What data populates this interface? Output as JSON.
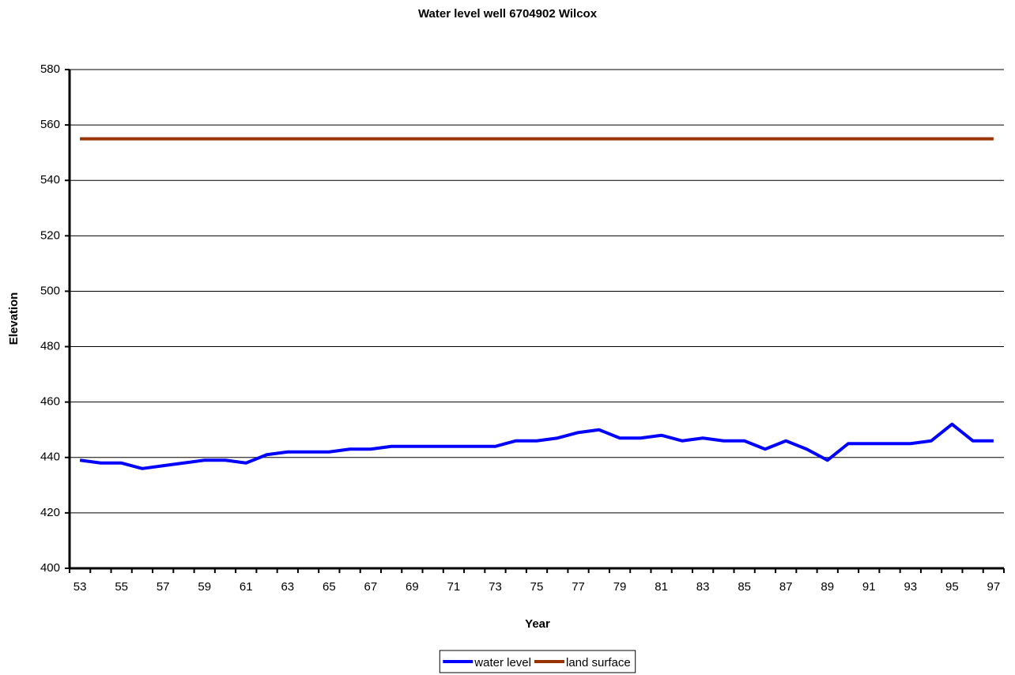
{
  "chart_data": {
    "type": "line",
    "title": "Water level well 6704902 Wilcox",
    "x_label": "Year",
    "y_label": "Elevation",
    "categories": [
      "53",
      null,
      "55",
      null,
      "57",
      null,
      "59",
      null,
      "61",
      null,
      "63",
      null,
      "65",
      null,
      "67",
      null,
      "69",
      null,
      "71",
      null,
      "73",
      null,
      "75",
      null,
      "77",
      null,
      "79",
      null,
      "81",
      null,
      "83",
      null,
      "85",
      null,
      "87",
      null,
      "89",
      null,
      "91",
      null,
      "93",
      null,
      "95",
      null,
      "97"
    ],
    "series": [
      {
        "name": "water level",
        "color": "#0000ff",
        "values": [
          439,
          438,
          438,
          436,
          437,
          438,
          439,
          439,
          438,
          441,
          442,
          442,
          442,
          443,
          443,
          444,
          444,
          444,
          444,
          444,
          444,
          446,
          446,
          447,
          449,
          450,
          447,
          447,
          448,
          446,
          447,
          446,
          446,
          443,
          446,
          443,
          439,
          445,
          445,
          445,
          445,
          446,
          452,
          446,
          446
        ]
      },
      {
        "name": "land surface",
        "color": "#993300",
        "values": [
          555,
          555,
          555,
          555,
          555,
          555,
          555,
          555,
          555,
          555,
          555,
          555,
          555,
          555,
          555,
          555,
          555,
          555,
          555,
          555,
          555,
          555,
          555,
          555,
          555,
          555,
          555,
          555,
          555,
          555,
          555,
          555,
          555,
          555,
          555,
          555,
          555,
          555,
          555,
          555,
          555,
          555,
          555,
          555,
          555
        ]
      }
    ],
    "ylim": [
      400,
      580
    ],
    "yticks": [
      400,
      420,
      440,
      460,
      480,
      500,
      520,
      540,
      560,
      580
    ],
    "grid": true,
    "legend": "bottom"
  }
}
